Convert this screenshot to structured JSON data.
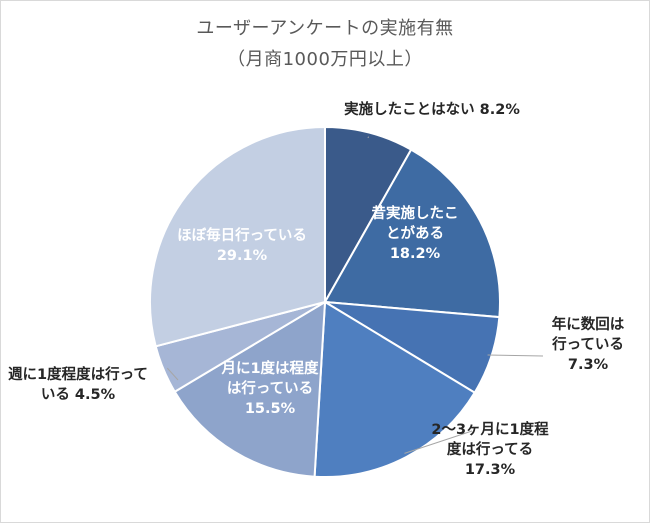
{
  "chart_data": {
    "type": "pie",
    "title": "ユーザーアンケートの実施有無",
    "subtitle": "（月商1000万円以上）",
    "unit": "%",
    "slices": [
      {
        "label": "実施したことはない",
        "value": 8.2,
        "color": "#3a5a8a",
        "value_text": "8.2%",
        "label_lines": [
          "実施したことはない 8.2%"
        ],
        "label_style": "dark"
      },
      {
        "label": "昔実施したことがある",
        "value": 18.2,
        "color": "#3e6ba3",
        "value_text": "18.2%",
        "label_lines": [
          "昔実施したこ",
          "とがある",
          "18.2%"
        ],
        "label_style": "light"
      },
      {
        "label": "年に数回は行っている",
        "value": 7.3,
        "color": "#4673b3",
        "value_text": "7.3%",
        "label_lines": [
          "年に数回は",
          "行っている",
          "7.3%"
        ],
        "label_style": "dark"
      },
      {
        "label": "2～3ヶ月に1度程度は行ってる",
        "value": 17.3,
        "color": "#4f7fc0",
        "value_text": "17.3%",
        "label_lines": [
          "2～3ヶ月に1度程",
          "度は行ってる",
          "17.3%"
        ],
        "label_style": "dark"
      },
      {
        "label": "月に1度は程度は行っている",
        "value": 15.5,
        "color": "#8ea4cb",
        "value_text": "15.5%",
        "label_lines": [
          "月に1度は程度",
          "は行っている",
          "15.5%"
        ],
        "label_style": "light"
      },
      {
        "label": "週に1度程度は行っている",
        "value": 4.5,
        "color": "#a6b6d6",
        "value_text": "4.5%",
        "label_lines": [
          "週に1度程度は行って",
          "いる 4.5%"
        ],
        "label_style": "dark"
      },
      {
        "label": "ほぼ毎日行っている",
        "value": 29.1,
        "color": "#c3cfe3",
        "value_text": "29.1%",
        "label_lines": [
          "ほぼ毎日行っている",
          "29.1%"
        ],
        "label_style": "light"
      }
    ]
  }
}
